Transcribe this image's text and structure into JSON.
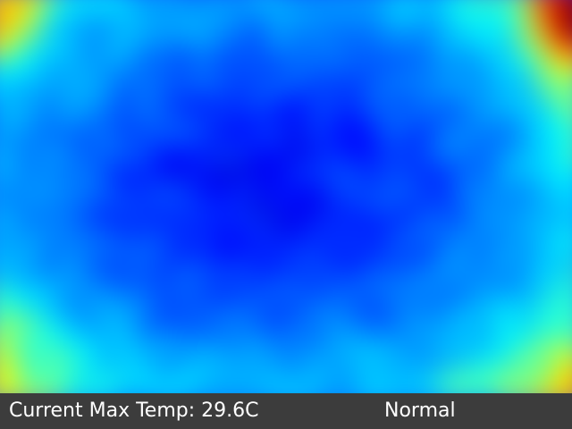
{
  "status_bar": {
    "max_temp_label": "Current Max Temp: 29.6C",
    "status": "Normal"
  },
  "thermal_view": {
    "colormap": [
      "#000080",
      "#0000ff",
      "#0080ff",
      "#00ffff",
      "#ffff00",
      "#ff8000",
      "#ff0000",
      "#800000"
    ]
  }
}
